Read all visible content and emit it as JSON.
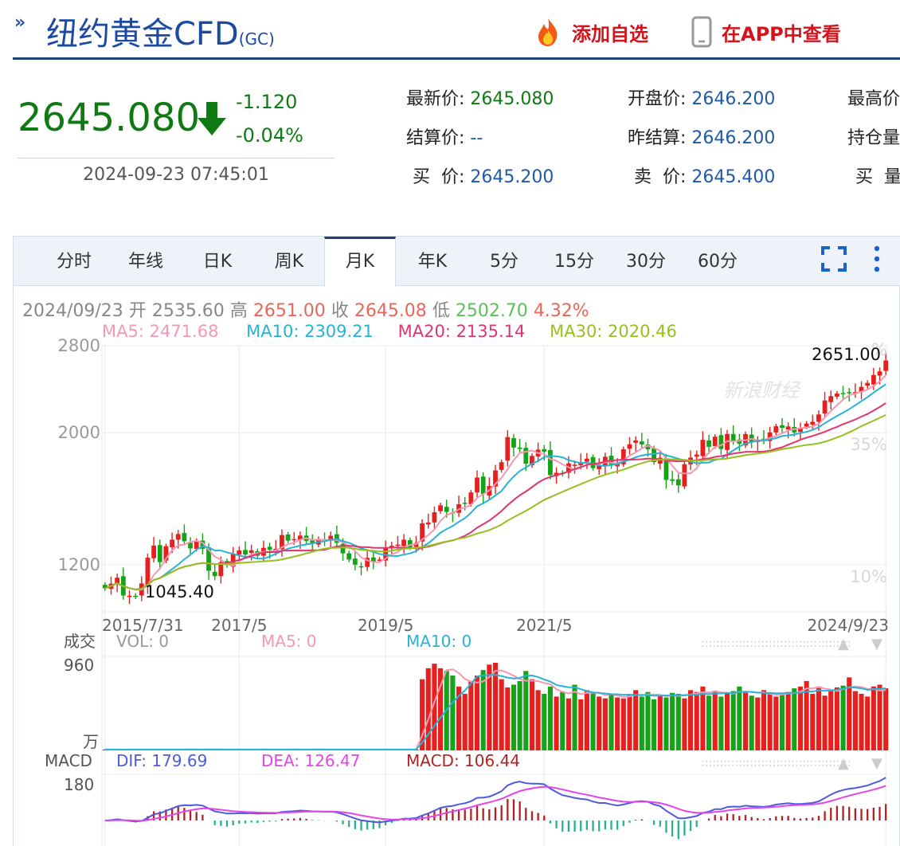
{
  "header": {
    "title": "纽约黄金CFD",
    "code": "(GC)",
    "add_favorite": "添加自选",
    "view_in_app": "在APP中查看"
  },
  "quote": {
    "price": "2645.080",
    "change": "-1.120",
    "change_pct": "-0.04%",
    "time": "2024-09-23 07:45:01",
    "fields": [
      {
        "label": "最新价:",
        "value": "2645.080"
      },
      {
        "label": "开盘价:",
        "value": "2646.200"
      },
      {
        "label": "最高价",
        "value": ""
      },
      {
        "label": "结算价:",
        "value": "--"
      },
      {
        "label": "昨结算:",
        "value": "2646.200"
      },
      {
        "label": "持仓量",
        "value": ""
      },
      {
        "label": "买  价:",
        "value": "2645.200"
      },
      {
        "label": "卖  价:",
        "value": "2645.400"
      },
      {
        "label": "买  量",
        "value": ""
      }
    ]
  },
  "tabs": [
    "分时",
    "年线",
    "日K",
    "周K",
    "月K",
    "年K",
    "5分",
    "15分",
    "30分",
    "60分"
  ],
  "active_tab": "月K",
  "info": {
    "date": "2024/09/23",
    "open_label": "开",
    "open": "2535.60",
    "high_label": "高",
    "high": "2651.00",
    "close_label": "收",
    "close": "2645.08",
    "low_label": "低",
    "low": "2502.70",
    "pct": "4.32%"
  },
  "ma": {
    "ma5": "MA5: 2471.68",
    "ma10": "MA10: 2309.21",
    "ma20": "MA20: 2135.14",
    "ma30": "MA30: 2020.46"
  },
  "colors": {
    "up": "#e8201d",
    "down": "#17a21a",
    "ma5": "#f598b2",
    "ma10": "#27b3d6",
    "ma20": "#e2356f",
    "ma30": "#95c11f",
    "dif": "#4d5bdc",
    "dea": "#e445e8",
    "macd_up": "#b22222",
    "macd_down": "#2ab08f"
  },
  "chart_data": [
    {
      "type": "candlestick",
      "title": "",
      "y_ticks": [
        "2800",
        "2000",
        "1200"
      ],
      "y_range": [
        1000,
        2800
      ],
      "y_scale": "log",
      "pct_ticks": [
        "%",
        "35%",
        "10%"
      ],
      "x_ticks": [
        "2015/7/31",
        "2017/5",
        "2019/5",
        "2021/5",
        "2024/9/23"
      ],
      "max_label": "2651.00",
      "min_label": "1045.40",
      "watermark": "新浪财经",
      "x_start": "2015-07",
      "x_end": "2024-09",
      "closes": [
        1095,
        1115,
        1141,
        1065,
        1064,
        1061,
        1116,
        1233,
        1292,
        1212,
        1289,
        1322,
        1351,
        1314,
        1278,
        1315,
        1276,
        1172,
        1148,
        1212,
        1198,
        1250,
        1268,
        1248,
        1269,
        1242,
        1281,
        1271,
        1276,
        1346,
        1317,
        1325,
        1343,
        1315,
        1305,
        1325,
        1318,
        1342,
        1306,
        1254,
        1224,
        1200,
        1192,
        1232,
        1213,
        1224,
        1282,
        1291,
        1297,
        1322,
        1283,
        1305,
        1408,
        1413,
        1470,
        1510,
        1472,
        1464,
        1516,
        1523,
        1587,
        1681,
        1577,
        1627,
        1728,
        1784,
        1966,
        1888,
        1878,
        1774,
        1828,
        1873,
        1859,
        1697,
        1712,
        1706,
        1776,
        1767,
        1784,
        1809,
        1744,
        1762,
        1822,
        1767,
        1773,
        1876,
        1912,
        1941,
        1911,
        1875,
        1785,
        1815,
        1666,
        1660,
        1631,
        1770,
        1816,
        1838,
        1945,
        1894,
        1969,
        1878,
        1990,
        1940,
        1916,
        1989,
        1926,
        1942,
        1944,
        2002,
        2050,
        2038,
        2049,
        2002,
        2036,
        2072,
        2086,
        2146,
        2265,
        2304,
        2327,
        2326,
        2336,
        2340,
        2388,
        2425,
        2500,
        2535,
        2645
      ],
      "ranges": [
        {
          "date": "2024-09",
          "open": 2535.6,
          "high": 2651.0,
          "low": 2502.7,
          "close": 2645.08
        }
      ],
      "ma5_last": 2471.68,
      "ma10_last": 2309.21,
      "ma20_last": 2135.14,
      "ma30_last": 2020.46
    },
    {
      "type": "bar",
      "title_label": "成交",
      "vol_label": "VOL: 0",
      "ma5_label": "MA5: 0",
      "ma10_label": "MA10: 0",
      "y_ticks": [
        "960",
        "万"
      ],
      "y_max": 960,
      "volumes": [
        10,
        9,
        9,
        8,
        10,
        11,
        10,
        10,
        9,
        10,
        11,
        10,
        9,
        10,
        11,
        9,
        10,
        11,
        10,
        9,
        10,
        9,
        11,
        10,
        10,
        9,
        11,
        10,
        10,
        9,
        10,
        11,
        9,
        10,
        10,
        11,
        9,
        10,
        10,
        9,
        11,
        10,
        10,
        9,
        10,
        10,
        9,
        11,
        10,
        10,
        9,
        10,
        780,
        900,
        950,
        900,
        870,
        820,
        700,
        620,
        760,
        820,
        880,
        940,
        960,
        780,
        690,
        720,
        760,
        870,
        780,
        660,
        620,
        700,
        590,
        640,
        570,
        720,
        560,
        660,
        640,
        590,
        570,
        620,
        580,
        570,
        610,
        660,
        590,
        640,
        560,
        600,
        580,
        630,
        620,
        570,
        660,
        640,
        700,
        600,
        650,
        590,
        620,
        650,
        700,
        640,
        600,
        580,
        660,
        620,
        590,
        610,
        640,
        680,
        700,
        760,
        620,
        700,
        600,
        650,
        690,
        710,
        800,
        650,
        620,
        590,
        700,
        720,
        680
      ]
    },
    {
      "type": "line",
      "title_label": "MACD",
      "dif_label": "DIF: 179.69",
      "dea_label": "DEA: 126.47",
      "macd_label": "MACD: 106.44",
      "y_ticks": [
        "180"
      ],
      "y_max": 180,
      "dif_last": 179.69,
      "dea_last": 126.47,
      "macd_last": 106.44
    }
  ]
}
